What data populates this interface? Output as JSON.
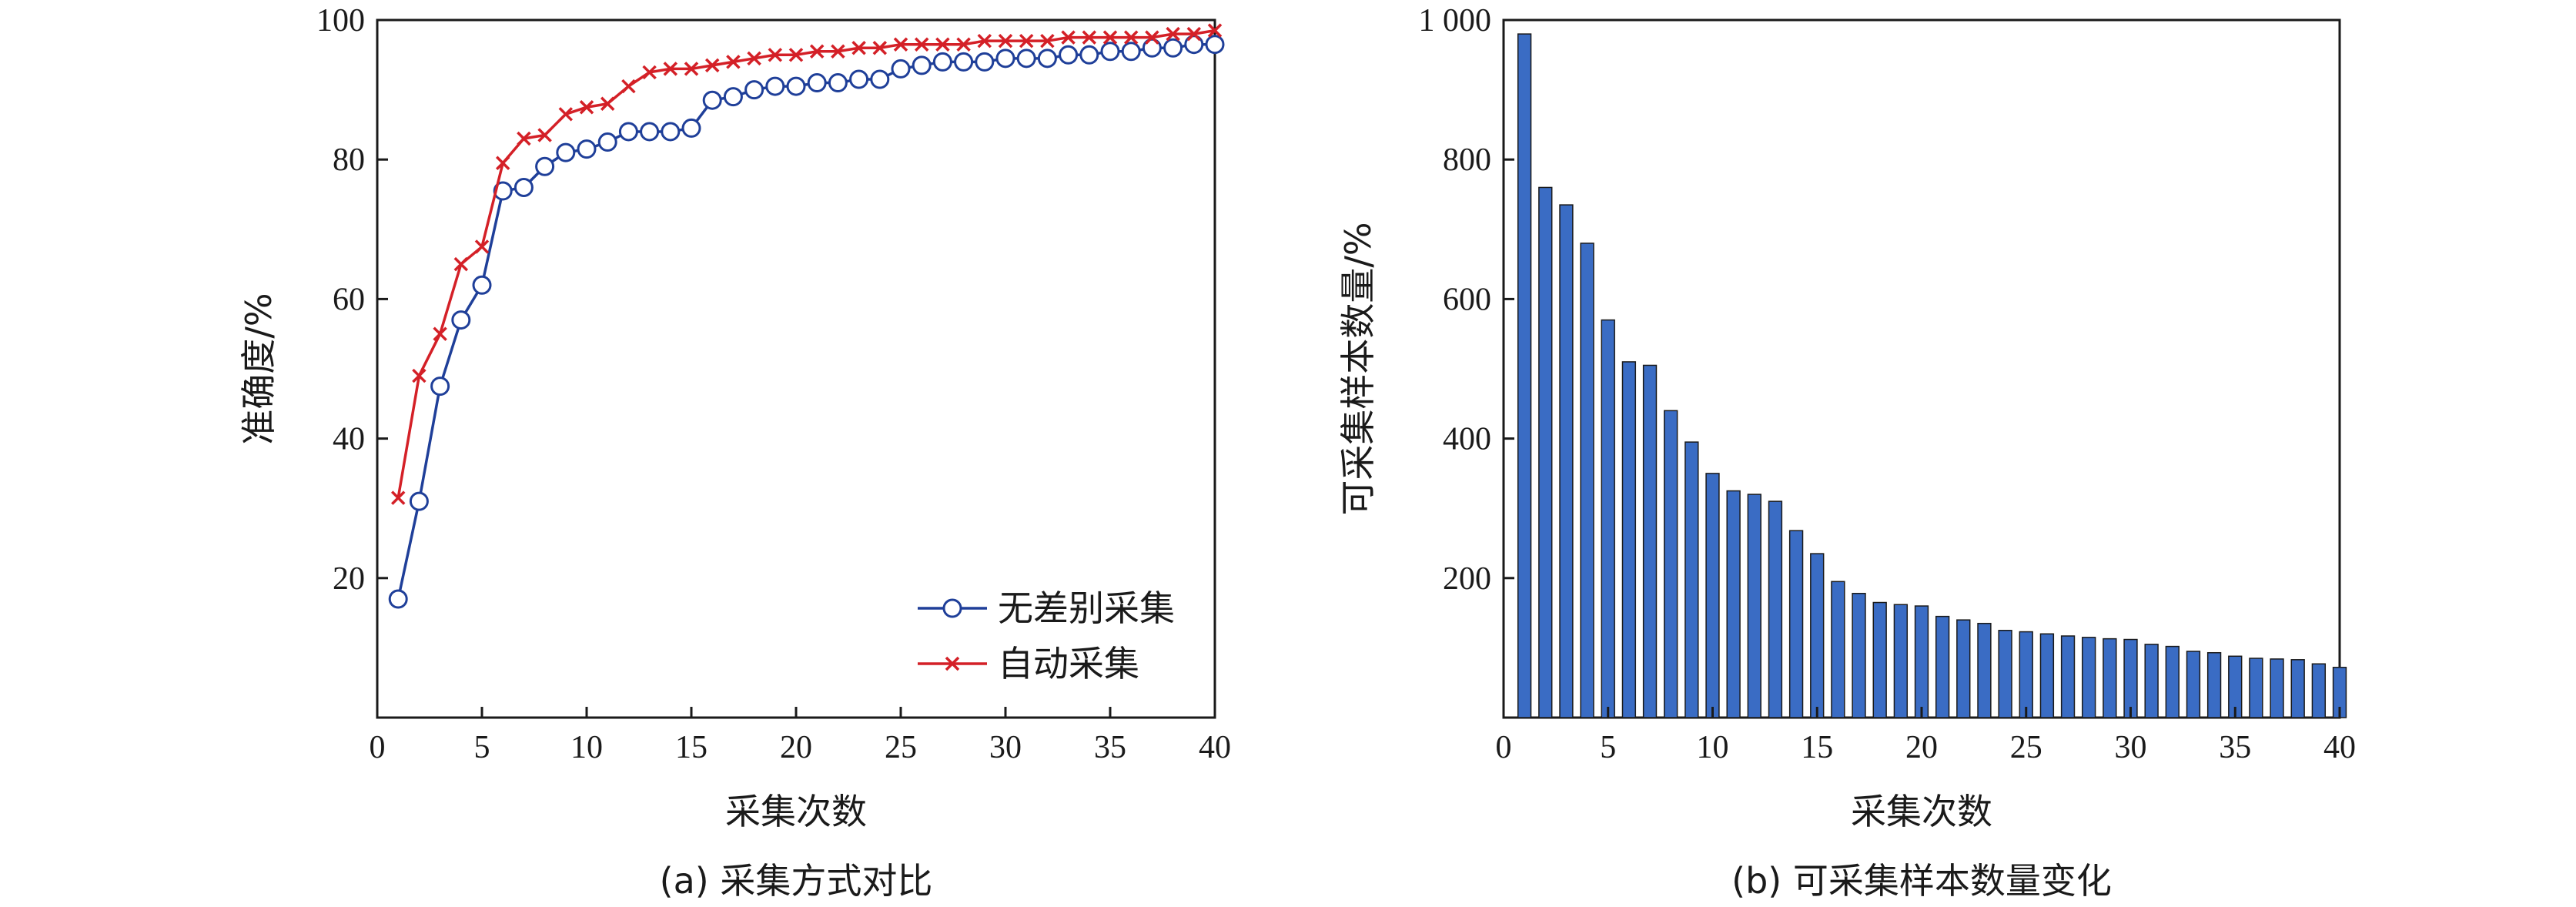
{
  "chart_data": [
    {
      "type": "line",
      "caption": "(a)  采集方式对比",
      "xlabel": "采集次数",
      "ylabel": "准确度/%",
      "xlim": [
        0,
        40
      ],
      "ylim": [
        0,
        100
      ],
      "xticks": [
        "0",
        "5",
        "10",
        "15",
        "20",
        "25",
        "30",
        "35",
        "40"
      ],
      "yticks": [
        "20",
        "40",
        "60",
        "80",
        "100"
      ],
      "legend_position": "bottom-right",
      "x": [
        1,
        2,
        3,
        4,
        5,
        6,
        7,
        8,
        9,
        10,
        11,
        12,
        13,
        14,
        15,
        16,
        17,
        18,
        19,
        20,
        21,
        22,
        23,
        24,
        25,
        26,
        27,
        28,
        29,
        30,
        31,
        32,
        33,
        34,
        35,
        36,
        37,
        38,
        39,
        40
      ],
      "series": [
        {
          "name": "无差别采集",
          "color": "#1f3f99",
          "marker": "circle",
          "values": [
            17,
            31,
            47.5,
            57,
            62,
            75.5,
            76,
            79,
            81,
            81.5,
            82.5,
            84,
            84,
            84,
            84.5,
            88.5,
            89,
            90,
            90.5,
            90.5,
            91,
            91,
            91.5,
            91.5,
            93,
            93.5,
            94,
            94,
            94,
            94.5,
            94.5,
            94.5,
            95,
            95,
            95.5,
            95.5,
            96,
            96,
            96.5,
            96.5
          ]
        },
        {
          "name": "自动采集",
          "color": "#d42027",
          "marker": "x",
          "values": [
            31.5,
            49,
            55,
            65,
            67.5,
            79.5,
            83,
            83.5,
            86.5,
            87.5,
            88,
            90.5,
            92.5,
            93,
            93,
            93.5,
            94,
            94.5,
            95,
            95,
            95.5,
            95.5,
            96,
            96,
            96.5,
            96.5,
            96.5,
            96.5,
            97,
            97,
            97,
            97,
            97.5,
            97.5,
            97.5,
            97.5,
            97.5,
            98,
            98,
            98.5
          ]
        }
      ]
    },
    {
      "type": "bar",
      "caption": "(b)  可采集样本数量变化",
      "xlabel": "采集次数",
      "ylabel": "可采集样本数量/%",
      "xlim": [
        0,
        40
      ],
      "ylim": [
        0,
        1000
      ],
      "xticks": [
        "0",
        "5",
        "10",
        "15",
        "20",
        "25",
        "30",
        "35",
        "40"
      ],
      "yticks": [
        "200",
        "400",
        "600",
        "800",
        "1 000"
      ],
      "color": "#3a6cc4",
      "x": [
        1,
        2,
        3,
        4,
        5,
        6,
        7,
        8,
        9,
        10,
        11,
        12,
        13,
        14,
        15,
        16,
        17,
        18,
        19,
        20,
        21,
        22,
        23,
        24,
        25,
        26,
        27,
        28,
        29,
        30,
        31,
        32,
        33,
        34,
        35,
        36,
        37,
        38,
        39,
        40
      ],
      "values": [
        980,
        760,
        735,
        680,
        570,
        510,
        505,
        440,
        395,
        350,
        325,
        320,
        310,
        268,
        235,
        195,
        178,
        165,
        162,
        160,
        145,
        140,
        135,
        125,
        123,
        120,
        117,
        115,
        113,
        112,
        105,
        102,
        95,
        93,
        88,
        85,
        84,
        83,
        77,
        72
      ]
    }
  ]
}
